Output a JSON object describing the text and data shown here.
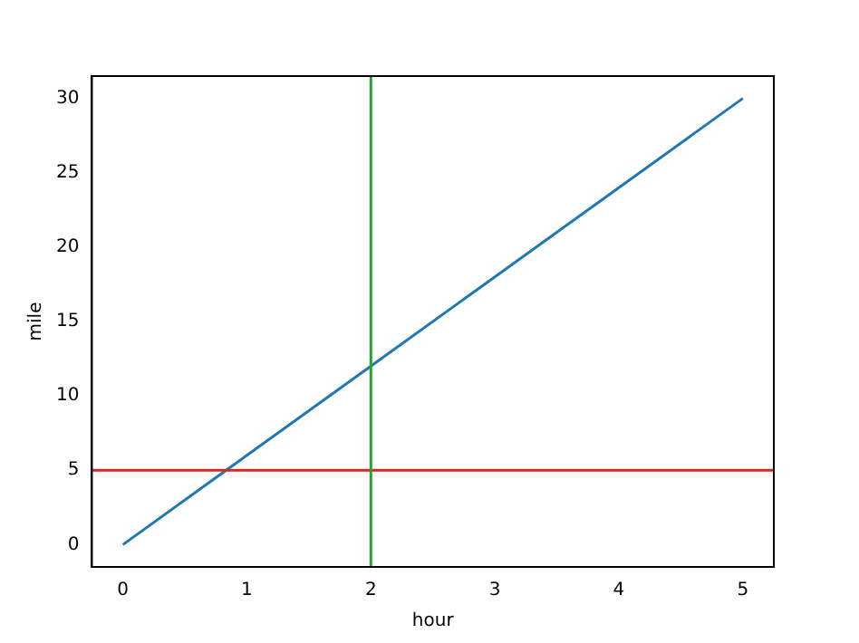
{
  "chart_data": {
    "type": "line",
    "xlabel": "hour",
    "ylabel": "mile",
    "x": [
      0,
      1,
      2,
      3,
      4,
      5
    ],
    "series": [
      {
        "color": "#1f77b4",
        "values": [
          0,
          6,
          12,
          18,
          24,
          30
        ]
      }
    ],
    "xlim": [
      -0.25,
      5.25
    ],
    "xticks": [
      0,
      1,
      2,
      3,
      4,
      5
    ],
    "ylim": [
      -1.5,
      31.5
    ],
    "yticks": [
      0,
      5,
      10,
      15,
      20,
      25,
      30
    ],
    "ref_lines": [
      {
        "axis": "y",
        "value": 5,
        "color": "#d62728"
      },
      {
        "axis": "x",
        "value": 2,
        "color": "#2ca02c"
      }
    ],
    "grid": false,
    "legend": false,
    "marker": "none",
    "line_style": "solid"
  }
}
